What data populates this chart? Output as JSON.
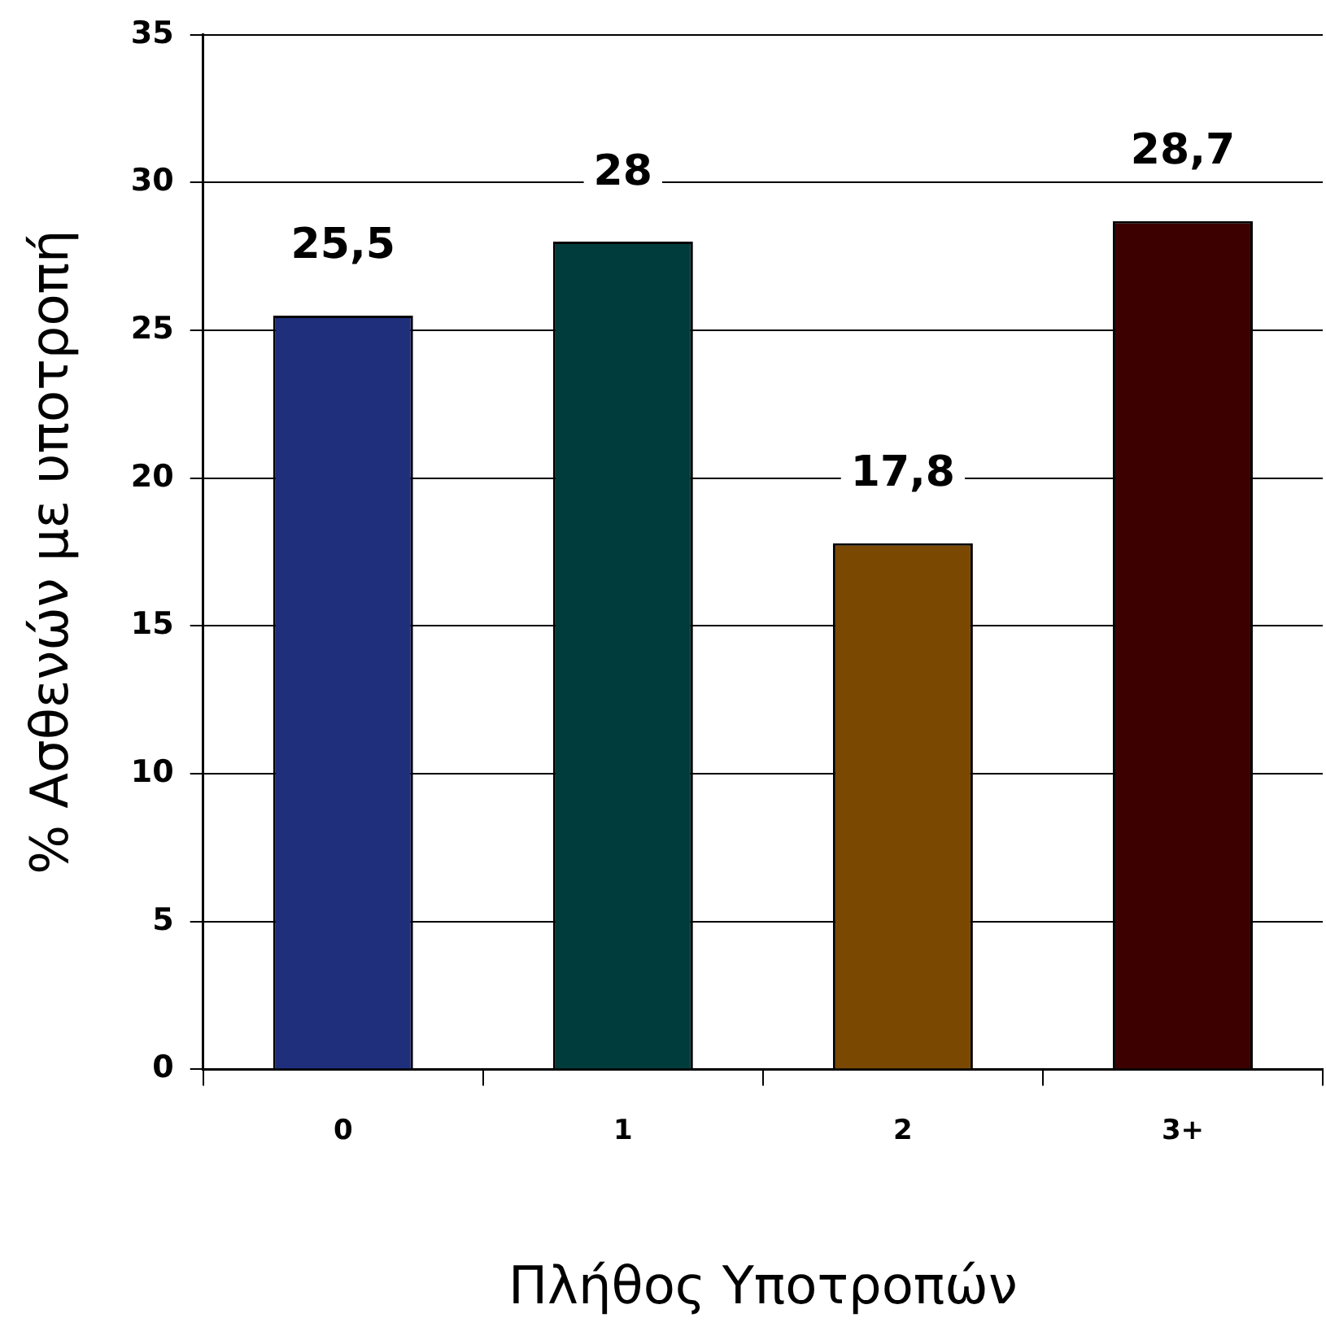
{
  "chart_data": {
    "type": "bar",
    "xlabel": "Πλήθος Υποτροπών",
    "ylabel": "% Ασθενών με υποτροπή",
    "categories": [
      "0",
      "1",
      "2",
      "3+"
    ],
    "values": [
      25.5,
      28,
      17.8,
      28.7
    ],
    "colors": [
      "#1f2f7c",
      "#003c3c",
      "#7a4800",
      "#3c0000"
    ],
    "value_labels": [
      "25,5",
      "28",
      "17,8",
      "28,7"
    ],
    "ylim": [
      0,
      35
    ],
    "yticks": [
      0,
      5,
      10,
      15,
      20,
      25,
      30,
      35
    ],
    "grid": "y"
  }
}
